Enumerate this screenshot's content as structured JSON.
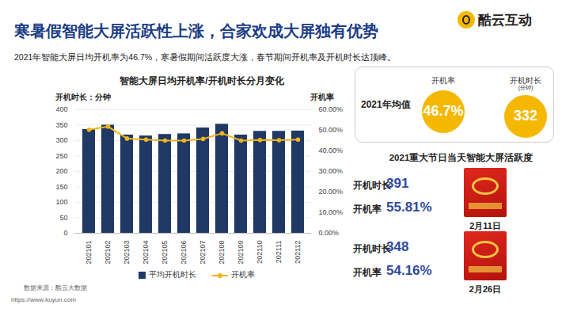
{
  "header": {
    "title": "寒暑假智能大屏活跃性上涨，合家欢成大屏独有优势",
    "logo": "酷云互动",
    "subtitle": "2021年智能大屏日均开机率为46.7%，寒暑假期间活跃度大涨，春节期间开机率及开机时长达顶峰。"
  },
  "chart_data": {
    "type": "bar",
    "title": "智能大屏日均开机率/开机时长分月变化",
    "ylabel": "开机时长：分钟",
    "y2label": "开机率",
    "categories": [
      "202101",
      "202102",
      "202103",
      "202104",
      "202105",
      "202106",
      "202107",
      "202108",
      "202109",
      "202110",
      "202111",
      "202112"
    ],
    "series": [
      {
        "name": "平均开机时长",
        "type": "bar",
        "color": "#1f3864",
        "values": [
          336,
          350,
          318,
          315,
          320,
          322,
          341,
          353,
          318,
          330,
          330,
          331
        ]
      },
      {
        "name": "开机率",
        "type": "line",
        "axis": "y2",
        "color": "#f2b31b",
        "marker": "circle",
        "values": [
          50.3,
          51.8,
          46.0,
          45.5,
          45.0,
          45.0,
          45.8,
          48.5,
          45.0,
          45.3,
          45.2,
          45.5
        ]
      }
    ],
    "ylim": [
      0,
      400
    ],
    "yticks": [
      0,
      50,
      100,
      150,
      200,
      250,
      300,
      350,
      400
    ],
    "y2lim": [
      0,
      60
    ],
    "y2ticks": [
      {
        "value": 0,
        "label": "0.00%"
      },
      {
        "value": 10,
        "label": "10.00%"
      },
      {
        "value": 20,
        "label": "20.00%"
      },
      {
        "value": 30,
        "label": "30.00%"
      },
      {
        "value": 40,
        "label": "40.00%"
      },
      {
        "value": 50,
        "label": "50.00%"
      },
      {
        "value": 60,
        "label": "60.00%"
      }
    ],
    "grid": true,
    "legend": "bottom"
  },
  "summary": {
    "title": "2021年均值",
    "items": [
      {
        "label": "开机率",
        "value": "46.7%"
      },
      {
        "label": "开机时长",
        "unit": "(分钟)",
        "value": "332"
      }
    ]
  },
  "holidays": {
    "title": "2021重大节日当天智能大屏活跃度",
    "items": [
      {
        "date": "2月11日",
        "rows": [
          {
            "label": "开机时长",
            "value": "391"
          },
          {
            "label": "开机率",
            "value": "55.81%"
          }
        ]
      },
      {
        "date": "2月26日",
        "rows": [
          {
            "label": "开机时长",
            "value": "348"
          },
          {
            "label": "开机率",
            "value": "54.16%"
          }
        ]
      }
    ]
  },
  "footer": {
    "source": "数据来源：酷云大数据",
    "url": "https://www.kuyun.com"
  }
}
